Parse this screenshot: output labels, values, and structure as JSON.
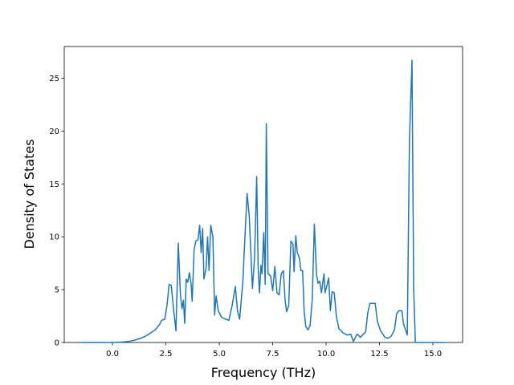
{
  "chart_data": {
    "type": "line",
    "xlabel": "Frequency (THz)",
    "ylabel": "Density of States",
    "color": "#1f77b4",
    "x": [
      -1.45,
      -1.0,
      -0.5,
      0,
      0.25,
      0.5,
      0.75,
      1.0,
      1.25,
      1.5,
      1.75,
      2.0,
      2.2,
      2.3,
      2.45,
      2.55,
      2.65,
      2.75,
      2.85,
      2.97,
      3.08,
      3.18,
      3.25,
      3.32,
      3.38,
      3.45,
      3.52,
      3.6,
      3.68,
      3.73,
      3.82,
      3.9,
      4.0,
      4.08,
      4.15,
      4.22,
      4.28,
      4.38,
      4.45,
      4.52,
      4.6,
      4.7,
      4.78,
      4.85,
      4.95,
      5.1,
      5.3,
      5.45,
      5.6,
      5.75,
      5.85,
      5.95,
      6.1,
      6.2,
      6.3,
      6.4,
      6.55,
      6.65,
      6.75,
      6.82,
      6.88,
      6.95,
      7.0,
      7.08,
      7.15,
      7.2,
      7.28,
      7.4,
      7.5,
      7.6,
      7.7,
      7.8,
      7.9,
      8.0,
      8.08,
      8.15,
      8.25,
      8.35,
      8.45,
      8.5,
      8.58,
      8.65,
      8.75,
      8.82,
      8.9,
      8.97,
      9.05,
      9.15,
      9.25,
      9.35,
      9.45,
      9.55,
      9.62,
      9.7,
      9.78,
      9.9,
      9.95,
      10.05,
      10.12,
      10.2,
      10.28,
      10.38,
      10.48,
      10.6,
      10.8,
      11.0,
      11.15,
      11.28,
      11.45,
      11.6,
      11.85,
      11.95,
      12.05,
      12.3,
      12.4,
      12.55,
      12.75,
      12.9,
      13.05,
      13.2,
      13.3,
      13.4,
      13.55,
      13.62,
      13.75,
      13.8,
      13.9,
      14.02,
      14.1,
      14.18,
      15.6
    ],
    "values": [
      0,
      0,
      0,
      0,
      0.02,
      0.05,
      0.1,
      0.2,
      0.35,
      0.55,
      0.85,
      1.2,
      1.7,
      2.1,
      2.2,
      3.5,
      5.5,
      5.4,
      3.3,
      1.1,
      9.4,
      4.5,
      3.2,
      4.0,
      1.8,
      6.0,
      5.7,
      6.6,
      5.5,
      3.9,
      8.8,
      9.6,
      9.7,
      11.1,
      8.5,
      10.8,
      6.0,
      7.0,
      10.0,
      6.8,
      11.1,
      10.0,
      2.6,
      4.4,
      3.0,
      2.4,
      2.2,
      2.1,
      3.5,
      5.3,
      3.0,
      2.2,
      5.7,
      10.0,
      14.1,
      12.0,
      5.1,
      8.0,
      15.7,
      7.0,
      4.7,
      7.3,
      6.5,
      10.4,
      5.5,
      20.7,
      6.5,
      6.3,
      4.9,
      7.2,
      4.7,
      4.5,
      6.5,
      6.8,
      4.0,
      2.9,
      3.5,
      9.6,
      9.3,
      6.7,
      10.1,
      8.5,
      8.0,
      6.8,
      6.8,
      3.0,
      1.5,
      1.2,
      1.6,
      4.0,
      11.2,
      6.5,
      5.6,
      5.8,
      4.7,
      6.5,
      4.7,
      5.5,
      6.1,
      3.0,
      4.8,
      4.7,
      2.5,
      1.3,
      0.9,
      0.7,
      0.8,
      0.1,
      0.8,
      0.5,
      1.0,
      2.8,
      3.7,
      3.7,
      2.0,
      1.1,
      0.5,
      0.4,
      0.6,
      1.2,
      2.7,
      3.0,
      3.0,
      1.8,
      1.0,
      0.7,
      19.0,
      26.7,
      5.0,
      0,
      0
    ],
    "xlim": [
      -2.26,
      16.39
    ],
    "ylim": [
      0,
      28.0
    ],
    "xticks": [
      {
        "value": 0,
        "label": "0.0"
      },
      {
        "value": 2.5,
        "label": "2.5"
      },
      {
        "value": 5,
        "label": "5.0"
      },
      {
        "value": 7.5,
        "label": "7.5"
      },
      {
        "value": 10,
        "label": "10.0"
      },
      {
        "value": 12.5,
        "label": "12.5"
      },
      {
        "value": 15,
        "label": "15.0"
      }
    ],
    "yticks": [
      0,
      5,
      10,
      15,
      20,
      25
    ]
  }
}
